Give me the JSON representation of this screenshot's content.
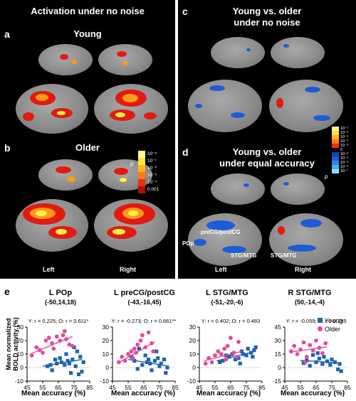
{
  "top": {
    "title_left": "Activation under no noise",
    "label_a": "a",
    "young": "Young",
    "label_b": "b",
    "older": "Older",
    "left": "Left",
    "right": "Right",
    "label_c": "c",
    "title_c": [
      "Young vs. older",
      "under no noise"
    ],
    "label_d": "d",
    "title_d": [
      "Young vs. older",
      "under equal accuracy"
    ],
    "p_symbol": "p",
    "cbar_b": [
      "10⁻⁸",
      "10⁻⁷",
      "10⁻⁶",
      "10⁻⁵",
      "10⁻⁴",
      "0.001"
    ],
    "cbar_d": [
      "10⁻⁷",
      "10⁻⁶",
      "10⁻⁵",
      "10⁻⁴",
      "10⁻³",
      "0",
      "10⁻³",
      "10⁻⁴",
      "10⁻⁵",
      "10⁻⁶",
      "10⁻⁷"
    ],
    "region_labels": {
      "precg": "preCG/postCG",
      "pop": "POp",
      "stg1": "STG/MTG",
      "stg2": "STG/MTG"
    },
    "colors": {
      "warm_hot": "#ffee44",
      "warm": "#ff9a1a",
      "warm_dark": "#e21a0f",
      "cool": "#1e5bd6",
      "cool_light": "#46b4ee",
      "brain": "#8c8c8c"
    }
  },
  "bottom": {
    "label_e": "e",
    "ylabel": [
      "Mean normalized",
      "BOLD activity (%)"
    ],
    "xlabel": "Mean accuracy (%)",
    "legend": [
      "Young",
      "Older"
    ],
    "young_color": "#1f63b0",
    "older_color": "#e24b9a"
  },
  "chart_data": [
    {
      "type": "scatter",
      "title": "L POp",
      "subtitle": "(-50,14,18)",
      "stats": "Y: r = 0.225;  O: r = 0.611*",
      "xlim": [
        45,
        85
      ],
      "ylim": [
        -10,
        30
      ],
      "xticks": [
        45,
        55,
        65,
        75,
        85
      ],
      "yticks": [
        -10,
        0,
        10,
        20,
        30
      ],
      "series": [
        {
          "name": "Young",
          "points": [
            [
              58,
              1
            ],
            [
              60,
              2
            ],
            [
              61,
              -2
            ],
            [
              63,
              6
            ],
            [
              64,
              3
            ],
            [
              66,
              7
            ],
            [
              67,
              4
            ],
            [
              69,
              2
            ],
            [
              70,
              10
            ],
            [
              71,
              5
            ],
            [
              72,
              3
            ],
            [
              74,
              6
            ],
            [
              75,
              15
            ],
            [
              76,
              1
            ],
            [
              77,
              12
            ],
            [
              78,
              -5
            ],
            [
              79,
              8
            ],
            [
              81,
              4
            ],
            [
              80,
              -3
            ],
            [
              73,
              -4
            ]
          ],
          "fit": [
            [
              55,
              1
            ],
            [
              80,
              6
            ]
          ]
        },
        {
          "name": "Older",
          "points": [
            [
              48,
              9
            ],
            [
              51,
              15
            ],
            [
              53,
              13
            ],
            [
              55,
              11
            ],
            [
              57,
              20
            ],
            [
              59,
              22
            ],
            [
              61,
              18
            ],
            [
              62,
              14
            ],
            [
              64,
              23
            ],
            [
              66,
              20
            ],
            [
              68,
              24
            ],
            [
              70,
              21
            ],
            [
              72,
              17
            ],
            [
              74,
              16
            ],
            [
              69,
              27
            ]
          ],
          "fit": [
            [
              47,
              10
            ],
            [
              74,
              23
            ]
          ]
        }
      ]
    },
    {
      "type": "scatter",
      "title": "L preCG/postCG",
      "subtitle": "(-43,-16,45)",
      "stats": "Y: r = -0.273;  O: r = 0.661**",
      "xlim": [
        45,
        85
      ],
      "ylim": [
        -10,
        30
      ],
      "xticks": [
        45,
        55,
        65,
        75,
        85
      ],
      "yticks": [
        -10,
        0,
        10,
        20,
        30
      ],
      "series": [
        {
          "name": "Young",
          "points": [
            [
              57,
              8
            ],
            [
              59,
              5
            ],
            [
              61,
              -1
            ],
            [
              62,
              14
            ],
            [
              64,
              2
            ],
            [
              66,
              9
            ],
            [
              67,
              4
            ],
            [
              69,
              3
            ],
            [
              70,
              -2
            ],
            [
              72,
              5
            ],
            [
              73,
              12
            ],
            [
              75,
              1
            ],
            [
              76,
              3
            ],
            [
              78,
              6
            ],
            [
              79,
              -4
            ],
            [
              80,
              0
            ],
            [
              74,
              7
            ],
            [
              68,
              6
            ]
          ],
          "fit": [
            [
              55,
              6
            ],
            [
              81,
              1
            ]
          ]
        },
        {
          "name": "Older",
          "points": [
            [
              49,
              4
            ],
            [
              51,
              8
            ],
            [
              53,
              5
            ],
            [
              55,
              10
            ],
            [
              57,
              12
            ],
            [
              59,
              14
            ],
            [
              61,
              17
            ],
            [
              63,
              20
            ],
            [
              64,
              24
            ],
            [
              66,
              15
            ],
            [
              68,
              26
            ],
            [
              70,
              18
            ],
            [
              71,
              12
            ],
            [
              60,
              11
            ],
            [
              58,
              7
            ]
          ],
          "fit": [
            [
              48,
              3
            ],
            [
              72,
              19
            ]
          ]
        }
      ]
    },
    {
      "type": "scatter",
      "title": "L STG/MTG",
      "subtitle": "(-51,-20,-6)",
      "stats": "Y: r = 0.402;  O: r = 0.483",
      "xlim": [
        45,
        85
      ],
      "ylim": [
        -10,
        30
      ],
      "xticks": [
        45,
        55,
        65,
        75,
        85
      ],
      "yticks": [
        -10,
        0,
        10,
        20,
        30
      ],
      "series": [
        {
          "name": "Young",
          "points": [
            [
              58,
              4
            ],
            [
              60,
              5
            ],
            [
              62,
              9
            ],
            [
              64,
              8
            ],
            [
              66,
              10
            ],
            [
              68,
              6
            ],
            [
              70,
              7
            ],
            [
              72,
              12
            ],
            [
              73,
              10
            ],
            [
              75,
              9
            ],
            [
              76,
              14
            ],
            [
              78,
              11
            ],
            [
              79,
              8
            ],
            [
              80,
              13
            ],
            [
              81,
              15
            ],
            [
              71,
              3
            ]
          ],
          "fit": [
            [
              56,
              5
            ],
            [
              81,
              12
            ]
          ]
        },
        {
          "name": "Older",
          "points": [
            [
              49,
              3
            ],
            [
              51,
              7
            ],
            [
              53,
              4
            ],
            [
              55,
              9
            ],
            [
              57,
              12
            ],
            [
              59,
              10
            ],
            [
              61,
              14
            ],
            [
              63,
              16
            ],
            [
              65,
              22
            ],
            [
              67,
              11
            ],
            [
              69,
              8
            ],
            [
              70,
              19
            ],
            [
              62,
              6
            ]
          ],
          "fit": [
            [
              48,
              5
            ],
            [
              72,
              12
            ]
          ]
        }
      ]
    },
    {
      "type": "scatter",
      "title": "R STG/MTG",
      "subtitle": "(50,-14,-4)",
      "stats": "Y: r = -0.059;  O: r = 0.295",
      "xlim": [
        45,
        85
      ],
      "ylim": [
        -15,
        45
      ],
      "xticks": [
        45,
        55,
        65,
        75,
        85
      ],
      "yticks": [
        -15,
        0,
        15,
        30,
        45
      ],
      "series": [
        {
          "name": "Young",
          "points": [
            [
              57,
              5
            ],
            [
              59,
              8
            ],
            [
              61,
              2
            ],
            [
              63,
              14
            ],
            [
              65,
              6
            ],
            [
              67,
              10
            ],
            [
              69,
              4
            ],
            [
              70,
              12
            ],
            [
              72,
              7
            ],
            [
              74,
              3
            ],
            [
              75,
              9
            ],
            [
              77,
              6
            ],
            [
              79,
              -2
            ],
            [
              80,
              4
            ],
            [
              81,
              -4
            ],
            [
              66,
              16
            ]
          ],
          "fit": [
            [
              55,
              8
            ],
            [
              81,
              5
            ]
          ]
        },
        {
          "name": "Older",
          "points": [
            [
              49,
              18
            ],
            [
              51,
              24
            ],
            [
              53,
              15
            ],
            [
              55,
              20
            ],
            [
              57,
              28
            ],
            [
              59,
              12
            ],
            [
              61,
              25
            ],
            [
              63,
              19
            ],
            [
              65,
              30
            ],
            [
              67,
              22
            ],
            [
              69,
              16
            ],
            [
              71,
              27
            ],
            [
              58,
              6
            ]
          ],
          "fit": [
            [
              48,
              17
            ],
            [
              72,
              23
            ]
          ]
        }
      ]
    }
  ]
}
